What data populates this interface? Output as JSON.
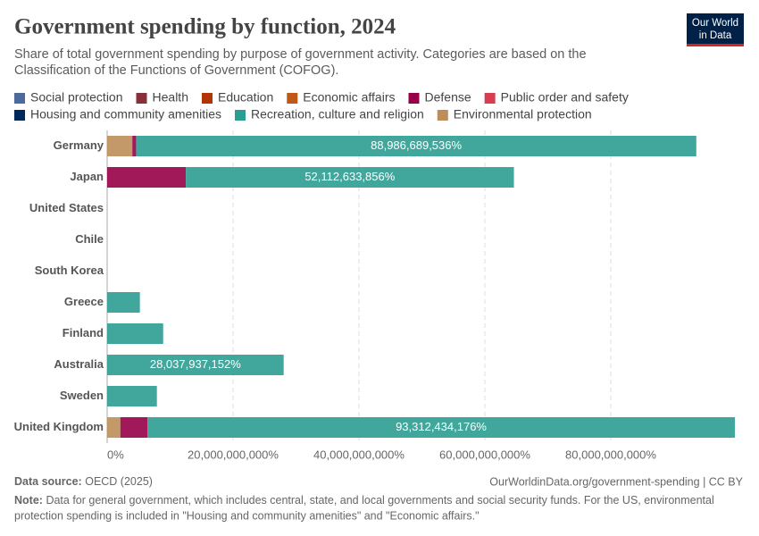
{
  "chart_data": {
    "type": "stacked-bar",
    "orientation": "horizontal",
    "title": "Government spending by function, 2024",
    "subtitle": [
      "Share of total government spending by purpose of government activity. Categories are based on the",
      "Classification of the Functions of Government (COFOG)."
    ],
    "logo": [
      "Our World",
      "in Data"
    ],
    "categories": [
      "Germany",
      "Japan",
      "United States",
      "Chile",
      "South Korea",
      "Greece",
      "Finland",
      "Australia",
      "Sweden",
      "United Kingdom"
    ],
    "series": [
      {
        "name": "Social protection",
        "color": "#4c6a9c",
        "values": [
          null,
          null,
          null,
          null,
          null,
          null,
          null,
          null,
          null,
          null
        ]
      },
      {
        "name": "Health",
        "color": "#883039",
        "values": [
          null,
          null,
          null,
          null,
          null,
          null,
          null,
          null,
          null,
          null
        ]
      },
      {
        "name": "Education",
        "color": "#b13507",
        "values": [
          null,
          null,
          null,
          null,
          null,
          null,
          null,
          null,
          null,
          null
        ]
      },
      {
        "name": "Economic affairs",
        "color": "#c05917",
        "values": [
          null,
          null,
          null,
          null,
          null,
          null,
          null,
          null,
          null,
          null
        ]
      },
      {
        "name": "Defense",
        "color": "#970046",
        "values": [
          600000000,
          12500000000,
          null,
          null,
          null,
          null,
          null,
          null,
          null,
          4300000000
        ]
      },
      {
        "name": "Public order and safety",
        "color": "#d73c50",
        "values": [
          null,
          null,
          null,
          null,
          null,
          null,
          null,
          null,
          null,
          null
        ]
      },
      {
        "name": "Housing and community amenities",
        "color": "#00295b",
        "values": [
          null,
          null,
          null,
          null,
          null,
          null,
          null,
          null,
          null,
          null
        ]
      },
      {
        "name": "Recreation, culture and religion",
        "color": "#2c9d92",
        "values": [
          88986689536,
          52112633856,
          null,
          null,
          null,
          5200000000,
          8900000000,
          28037937152,
          7900000000,
          93312434176
        ],
        "value_labels": [
          "88,986,689,536%",
          "52,112,633,856%",
          null,
          null,
          null,
          null,
          null,
          "28,037,937,152%",
          null,
          "93,312,434,176%"
        ]
      },
      {
        "name": "Environmental protection",
        "color": "#bc8e5a",
        "values": [
          4000000000,
          null,
          null,
          null,
          null,
          null,
          null,
          null,
          null,
          2100000000
        ]
      }
    ],
    "xlim": [
      0,
      100000000000
    ],
    "xticks": [
      {
        "value": 0,
        "label": "0%"
      },
      {
        "value": 20000000000,
        "label": "20,000,000,000%"
      },
      {
        "value": 40000000000,
        "label": "40,000,000,000%"
      },
      {
        "value": 60000000000,
        "label": "60,000,000,000%"
      },
      {
        "value": 80000000000,
        "label": "80,000,000,000%"
      }
    ],
    "grid": true,
    "source_label": "Data source:",
    "source": "OECD (2025)",
    "url": "OurWorldinData.org/government-spending | CC BY",
    "note_label": "Note:",
    "note": [
      "Data for general government, which includes central, state, and local governments and social security funds. For the US, environmental",
      "protection spending is included in \"Housing and community amenities\" and \"Economic affairs.\""
    ]
  }
}
